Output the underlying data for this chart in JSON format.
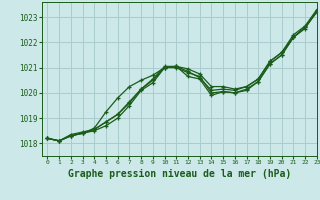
{
  "background_color": "#cce8e8",
  "grid_color": "#aacccc",
  "line_color": "#1a5c1a",
  "xlabel": "Graphe pression niveau de la mer (hPa)",
  "xlabel_fontsize": 7,
  "ylim": [
    1017.5,
    1023.6
  ],
  "xlim": [
    -0.5,
    23
  ],
  "yticks": [
    1018,
    1019,
    1020,
    1021,
    1022,
    1023
  ],
  "xticks": [
    0,
    1,
    2,
    3,
    4,
    5,
    6,
    7,
    8,
    9,
    10,
    11,
    12,
    13,
    14,
    15,
    16,
    17,
    18,
    19,
    20,
    21,
    22,
    23
  ],
  "series": [
    [
      1018.2,
      1018.1,
      1018.3,
      1018.4,
      1018.5,
      1018.7,
      1019.0,
      1019.5,
      1020.1,
      1020.4,
      1021.0,
      1021.05,
      1020.65,
      1020.55,
      1019.9,
      1020.05,
      1020.0,
      1020.1,
      1020.45,
      1021.15,
      1021.5,
      1022.2,
      1022.55,
      1023.25
    ],
    [
      1018.2,
      1018.1,
      1018.35,
      1018.45,
      1018.55,
      1018.85,
      1019.15,
      1019.6,
      1020.15,
      1020.55,
      1021.05,
      1021.05,
      1020.95,
      1020.75,
      1020.25,
      1020.25,
      1020.15,
      1020.25,
      1020.55,
      1021.25,
      1021.6,
      1022.3,
      1022.65,
      1023.3
    ],
    [
      1018.2,
      1018.1,
      1018.3,
      1018.4,
      1018.6,
      1019.25,
      1019.8,
      1020.25,
      1020.5,
      1020.7,
      1021.0,
      1021.05,
      1020.85,
      1020.6,
      1020.1,
      1020.15,
      1020.1,
      1020.25,
      1020.55,
      1021.25,
      1021.6,
      1022.2,
      1022.6,
      1023.2
    ],
    [
      1018.2,
      1018.1,
      1018.3,
      1018.4,
      1018.55,
      1018.85,
      1019.15,
      1019.65,
      1020.15,
      1020.5,
      1021.0,
      1021.0,
      1020.8,
      1020.65,
      1020.0,
      1020.05,
      1020.0,
      1020.15,
      1020.45,
      1021.15,
      1021.5,
      1022.2,
      1022.6,
      1023.2
    ]
  ]
}
